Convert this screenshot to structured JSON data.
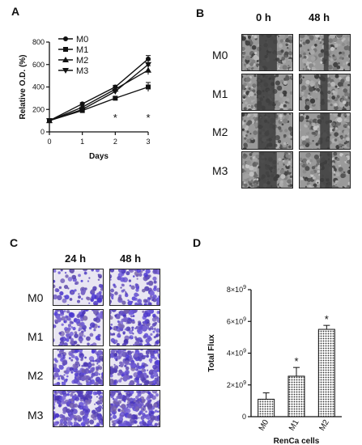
{
  "panels": {
    "a": {
      "letter": "A"
    },
    "b": {
      "letter": "B",
      "columns": [
        "0 h",
        "48 h"
      ],
      "rows": [
        "M0",
        "M1",
        "M2",
        "M3"
      ]
    },
    "c": {
      "letter": "C",
      "columns": [
        "24 h",
        "48 h"
      ],
      "rows": [
        "M0",
        "M1",
        "M2",
        "M3"
      ]
    },
    "d": {
      "letter": "D"
    }
  },
  "chart_data": [
    {
      "type": "line",
      "panel": "A",
      "x": [
        0,
        1,
        2,
        3
      ],
      "xlabel": "Days",
      "ylabel": "Relative O.D. (%)",
      "xlim": [
        0,
        3
      ],
      "ylim": [
        0,
        800
      ],
      "xticks": [
        "0",
        "1",
        "2",
        "3"
      ],
      "yticks": [
        "0",
        "200",
        "400",
        "600",
        "800"
      ],
      "legend_position": "top-left",
      "series": [
        {
          "name": "M0",
          "marker": "circle",
          "values": [
            100,
            250,
            400,
            650
          ],
          "errors": [
            0,
            10,
            15,
            30
          ]
        },
        {
          "name": "M1",
          "marker": "square",
          "values": [
            100,
            190,
            300,
            400
          ],
          "errors": [
            0,
            10,
            12,
            40
          ]
        },
        {
          "name": "M2",
          "marker": "triangle-up",
          "values": [
            100,
            220,
            380,
            550
          ],
          "errors": [
            0,
            10,
            15,
            40
          ]
        },
        {
          "name": "M3",
          "marker": "triangle-down",
          "values": [
            100,
            200,
            360,
            600
          ],
          "errors": [
            0,
            10,
            15,
            40
          ]
        }
      ],
      "annotations": [
        {
          "x": 2,
          "text": "*"
        },
        {
          "x": 3,
          "text": "*"
        }
      ]
    },
    {
      "type": "bar",
      "panel": "D",
      "categories": [
        "M0",
        "M1",
        "M2"
      ],
      "values": [
        1100000000,
        2550000000,
        5500000000
      ],
      "errors": [
        400000000,
        550000000,
        250000000
      ],
      "ylabel": "Total Flux",
      "xlabel": "RenCa cells",
      "ylim": [
        0,
        8000000000
      ],
      "yticks": [
        {
          "base": "0",
          "exp": ""
        },
        {
          "base": "2×10",
          "exp": "9"
        },
        {
          "base": "4×10",
          "exp": "9"
        },
        {
          "base": "6×10",
          "exp": "9"
        },
        {
          "base": "8×10",
          "exp": "9"
        }
      ],
      "annotations": [
        {
          "category": "M1",
          "text": "*"
        },
        {
          "category": "M2",
          "text": "*"
        }
      ]
    }
  ],
  "colors": {
    "ink": "#111111",
    "crystal_violet": "#5a3fb0",
    "micrograph_gray": "#8a8a8a"
  }
}
